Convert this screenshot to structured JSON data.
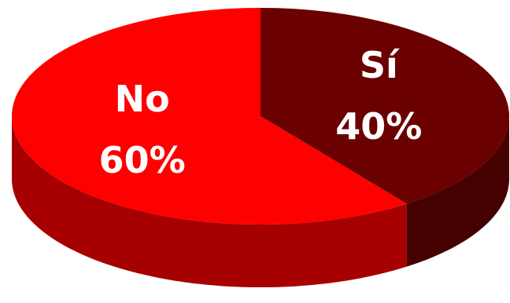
{
  "chart_data": {
    "type": "pie",
    "categories": [
      "Sí",
      "No"
    ],
    "values": [
      40,
      60
    ],
    "value_labels": [
      "40%",
      "60%"
    ],
    "colors": [
      "#6b0000",
      "#ff0000"
    ]
  }
}
